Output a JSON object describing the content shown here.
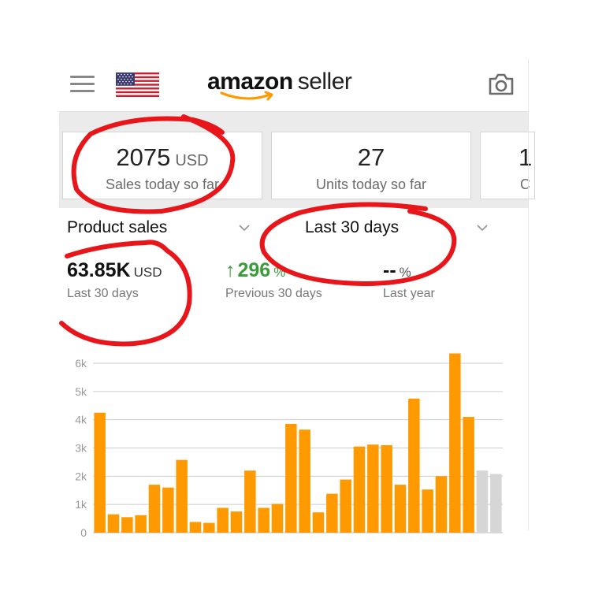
{
  "app": {
    "logo_brand": "amazon",
    "logo_suffix": "seller"
  },
  "header": {
    "menu_icon": "hamburger-menu-icon",
    "flag_icon": "us-flag-icon",
    "camera_icon": "camera-icon"
  },
  "cards": [
    {
      "value": "2075",
      "unit": "USD",
      "label": "Sales today so far"
    },
    {
      "value": "27",
      "unit": "",
      "label": "Units today so far"
    },
    {
      "value": "1",
      "unit": "",
      "label": "C"
    }
  ],
  "selectors": {
    "metric": "Product sales",
    "period": "Last 30 days"
  },
  "metrics": [
    {
      "value": "63.85K",
      "unit": "USD",
      "label": "Last 30 days"
    },
    {
      "arrow": "↑",
      "value": "296",
      "unit": "%",
      "label": "Previous 30 days"
    },
    {
      "value": "--",
      "unit": "%",
      "label": "Last year"
    }
  ],
  "colors": {
    "bar": "#ff9900",
    "bar_partial": "#d6d6d6",
    "positive": "#3a9b3a",
    "annotation": "#e8161b",
    "accent": "#ff9900"
  },
  "chart_data": {
    "type": "bar",
    "ylim": [
      0,
      6000
    ],
    "yticks": [
      "0",
      "1k",
      "2k",
      "3k",
      "4k",
      "5k",
      "6k"
    ],
    "grid": true,
    "series": [
      {
        "values": [
          4250,
          650,
          550,
          620,
          1700,
          1600,
          2580,
          380,
          350,
          880,
          750,
          2200,
          880,
          1020,
          3850,
          3650,
          720,
          1380,
          1880,
          3050,
          3120,
          3100,
          1700,
          4750,
          1530,
          2000,
          6350,
          4100
        ]
      },
      {
        "values": [
          2200,
          2080
        ]
      }
    ]
  }
}
